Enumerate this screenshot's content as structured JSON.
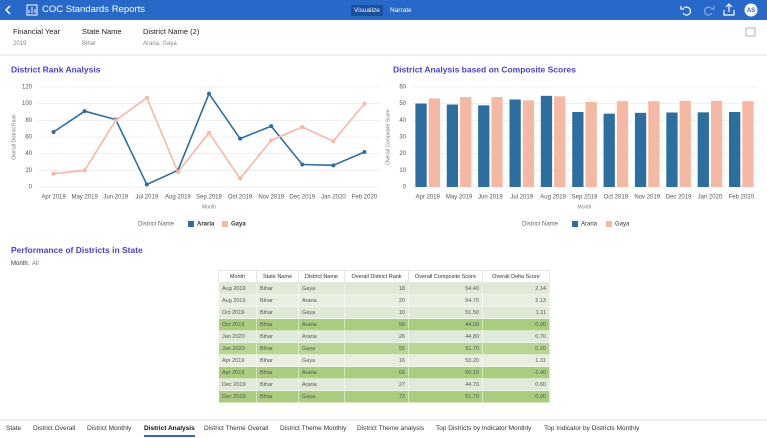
{
  "header": {
    "title": "COC Standards Reports",
    "tabs": [
      "Visualize",
      "Narrate"
    ],
    "active_tab": 0,
    "avatar": "AS"
  },
  "filters": [
    {
      "label": "Financial Year",
      "value": "2019"
    },
    {
      "label": "State Name",
      "value": "Bihar"
    },
    {
      "label": "District Name (2)",
      "value": "Araria, Gaya"
    }
  ],
  "chart_data": [
    {
      "type": "line",
      "title": "District Rank Analysis",
      "x_label": "Month",
      "y_label": "Overall District Rank",
      "categories": [
        "Apr 2019",
        "May 2019",
        "Jun 2019",
        "Jul 2019",
        "Aug 2019",
        "Sep 2019",
        "Oct 2019",
        "Nov 2019",
        "Dec 2019",
        "Jan 2020",
        "Feb 2020"
      ],
      "series": [
        {
          "name": "Araria",
          "color": "#2c6e9f",
          "values": [
            66,
            91,
            81,
            3,
            20,
            112,
            58,
            73,
            27,
            26,
            42
          ]
        },
        {
          "name": "Gaya",
          "color": "#f5b8a2",
          "values": [
            16,
            20,
            80,
            107,
            18,
            65,
            10,
            56,
            72,
            55,
            100
          ]
        }
      ],
      "ylim": [
        0,
        120
      ],
      "yticks": [
        0,
        20,
        40,
        60,
        80,
        100,
        120
      ],
      "grid": true,
      "legend_title": "District Name"
    },
    {
      "type": "bar",
      "title": "District Analysis based on Composite Scores",
      "x_label": "Month",
      "y_label": "Overall Composite Score",
      "categories": [
        "Apr 2019",
        "May 2019",
        "Jun 2019",
        "Jul 2019",
        "Aug 2019",
        "Sep 2019",
        "Oct 2019",
        "Nov 2019",
        "Dec 2019",
        "Jan 2020",
        "Feb 2020"
      ],
      "series": [
        {
          "name": "Araria",
          "color": "#2c6e9f",
          "values": [
            50.1,
            49.5,
            49,
            52.5,
            54.7,
            45,
            44,
            44.5,
            44.7,
            44.8,
            45
          ]
        },
        {
          "name": "Gaya",
          "color": "#f5b8a2",
          "values": [
            53.2,
            54,
            54,
            52,
            54.4,
            51,
            51.5,
            51.5,
            51.7,
            51.7,
            51.5
          ]
        }
      ],
      "ylim": [
        0,
        60
      ],
      "yticks": [
        0,
        10,
        20,
        30,
        40,
        50,
        60
      ],
      "grid": true,
      "legend_title": "District Name"
    }
  ],
  "table": {
    "title": "Performance of Districts in State",
    "filter_label": "Month:",
    "filter_value": "All",
    "columns": [
      "Month",
      "State Name",
      "District Name",
      "Overall District Rank",
      "Overall Composite Score",
      "Overall Delta Score"
    ],
    "rows": [
      [
        "Aug 2019",
        "Bihar",
        "Gaya",
        "18",
        "54.40",
        "2.14"
      ],
      [
        "Aug 2019",
        "Bihar",
        "Araria",
        "20",
        "54.70",
        "2.13"
      ],
      [
        "Oct 2019",
        "Bihar",
        "Gaya",
        "10",
        "51.50",
        "1.11"
      ],
      [
        "Oct 2019",
        "Bihar",
        "Araria",
        "58",
        "44.00",
        "0.00"
      ],
      [
        "Jan 2020",
        "Bihar",
        "Araria",
        "26",
        "44.80",
        "0.70"
      ],
      [
        "Jan 2020",
        "Bihar",
        "Gaya",
        "55",
        "51.70",
        "0.20"
      ],
      [
        "Apr 2019",
        "Bihar",
        "Gaya",
        "16",
        "53.20",
        "1.31"
      ],
      [
        "Apr 2019",
        "Bihar",
        "Araria",
        "66",
        "50.10",
        "-1.40"
      ],
      [
        "Dec 2019",
        "Bihar",
        "Araria",
        "27",
        "44.70",
        "0.60"
      ],
      [
        "Dec 2019",
        "Bihar",
        "Gaya",
        "72",
        "51.70",
        "0.00"
      ]
    ],
    "row_colors": [
      "#dfe9d6",
      "#e8efe1",
      "#dfe9d6",
      "#a9cd7c",
      "#e0ead8",
      "#b8d693",
      "#e8efe1",
      "#a9cd7c",
      "#e0ead8",
      "#a9cd7c"
    ]
  },
  "bottom_tabs": {
    "items": [
      "State",
      "District Overall",
      "District Monthly",
      "District Analysis",
      "District Theme Overall",
      "District Theme Monthly",
      "District Theme analysis",
      "Top Districts by Indicator Monthly",
      "Top Indicator by Districts Monthly"
    ],
    "active": 3
  }
}
